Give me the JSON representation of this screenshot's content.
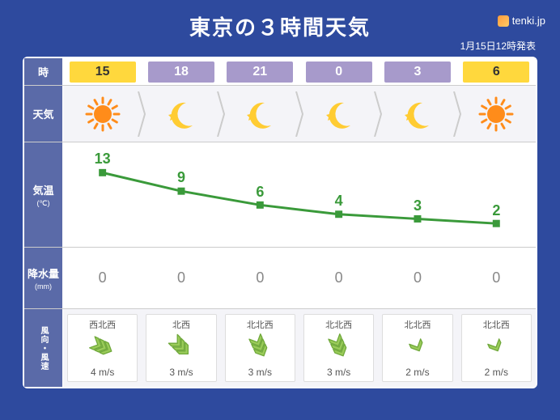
{
  "title": "東京の３時間天気",
  "brand": "tenki.jp",
  "timestamp": "1月15日12時発表",
  "labels": {
    "hour": "時",
    "weather": "天気",
    "temp": "気温",
    "temp_unit": "(℃)",
    "precip": "降水量",
    "precip_unit": "(mm)",
    "wind": "風向・風速"
  },
  "colors": {
    "bg": "#2e4a9e",
    "label_bg": "#5a6aa8",
    "day_pill_bg": "#ffd83d",
    "day_pill_fg": "#333333",
    "night_pill_bg": "#a79acb",
    "night_pill_fg": "#ffffff",
    "temp_line": "#3a9a3a",
    "temp_marker": "#3a9a3a",
    "precip_text": "#888888",
    "wind_arrow_fill": "#9acb5a",
    "wind_arrow_stroke": "#6fa83a",
    "sun_fill": "#ff8c1a",
    "moon_fill": "#ffcc33"
  },
  "temp_chart": {
    "ymin": 0,
    "ymax": 15,
    "line_width": 3,
    "marker_size": 9
  },
  "slots": [
    {
      "hour": "15",
      "is_day": true,
      "icon": "sun",
      "temp": 13,
      "precip": 0,
      "wind_dir": "西北西",
      "wind_speed": "4 m/s",
      "wind_strength": 3,
      "wind_angle": 115
    },
    {
      "hour": "18",
      "is_day": false,
      "icon": "moon",
      "temp": 9,
      "precip": 0,
      "wind_dir": "北西",
      "wind_speed": "3 m/s",
      "wind_strength": 3,
      "wind_angle": 135
    },
    {
      "hour": "21",
      "is_day": false,
      "icon": "moon",
      "temp": 6,
      "precip": 0,
      "wind_dir": "北北西",
      "wind_speed": "3 m/s",
      "wind_strength": 3,
      "wind_angle": 155
    },
    {
      "hour": "0",
      "is_day": false,
      "icon": "moon",
      "temp": 4,
      "precip": 0,
      "wind_dir": "北北西",
      "wind_speed": "3 m/s",
      "wind_strength": 3,
      "wind_angle": 155
    },
    {
      "hour": "3",
      "is_day": false,
      "icon": "moon",
      "temp": 3,
      "precip": 0,
      "wind_dir": "北北西",
      "wind_speed": "2 m/s",
      "wind_strength": 1,
      "wind_angle": 155
    },
    {
      "hour": "6",
      "is_day": true,
      "icon": "sun",
      "temp": 2,
      "precip": 0,
      "wind_dir": "北北西",
      "wind_speed": "2 m/s",
      "wind_strength": 1,
      "wind_angle": 155
    }
  ]
}
